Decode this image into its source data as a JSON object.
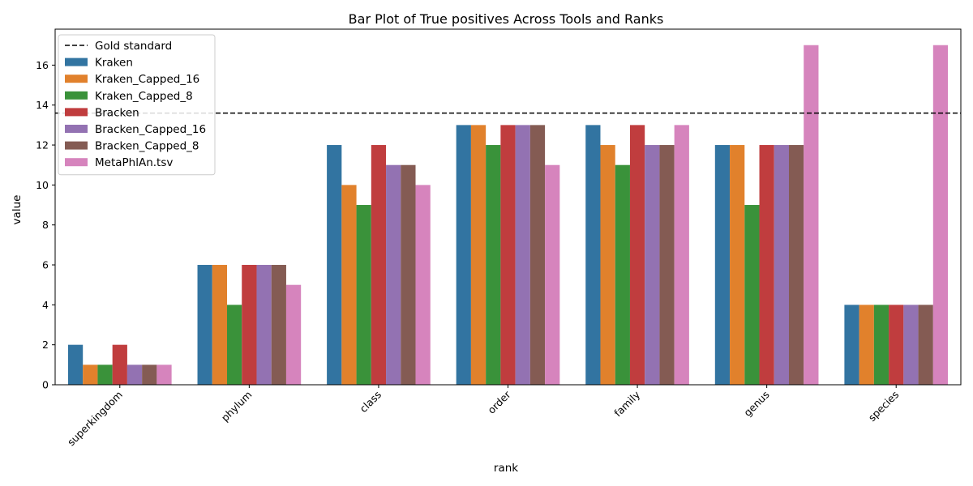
{
  "chart_data": {
    "type": "bar",
    "title": "Bar Plot of True positives Across Tools and Ranks",
    "xlabel": "rank",
    "ylabel": "value",
    "categories": [
      "superkingdom",
      "phylum",
      "class",
      "order",
      "family",
      "genus",
      "species"
    ],
    "series": [
      {
        "name": "Kraken",
        "color": "#3274a1",
        "values": [
          2,
          6,
          12,
          13,
          13,
          12,
          4
        ]
      },
      {
        "name": "Kraken_Capped_16",
        "color": "#e1812c",
        "values": [
          1,
          6,
          10,
          13,
          12,
          12,
          4
        ]
      },
      {
        "name": "Kraken_Capped_8",
        "color": "#3a923a",
        "values": [
          1,
          4,
          9,
          12,
          11,
          9,
          4
        ]
      },
      {
        "name": "Bracken",
        "color": "#c03d3e",
        "values": [
          2,
          6,
          12,
          13,
          13,
          12,
          4
        ]
      },
      {
        "name": "Bracken_Capped_16",
        "color": "#9372b2",
        "values": [
          1,
          6,
          11,
          13,
          12,
          12,
          4
        ]
      },
      {
        "name": "Bracken_Capped_8",
        "color": "#845b53",
        "values": [
          1,
          6,
          11,
          13,
          12,
          12,
          4
        ]
      },
      {
        "name": "MetaPhlAn.tsv",
        "color": "#d684bd",
        "values": [
          1,
          5,
          10,
          11,
          13,
          17,
          17
        ]
      }
    ],
    "reference_line": {
      "name": "Gold standard",
      "value": 13.6,
      "style": "dashed",
      "color": "#000000"
    },
    "ylim": [
      0,
      17.8
    ],
    "yticks": [
      0,
      2,
      4,
      6,
      8,
      10,
      12,
      14,
      16
    ],
    "grid": false,
    "legend_position": "top-left",
    "xtick_rotation": 45
  }
}
